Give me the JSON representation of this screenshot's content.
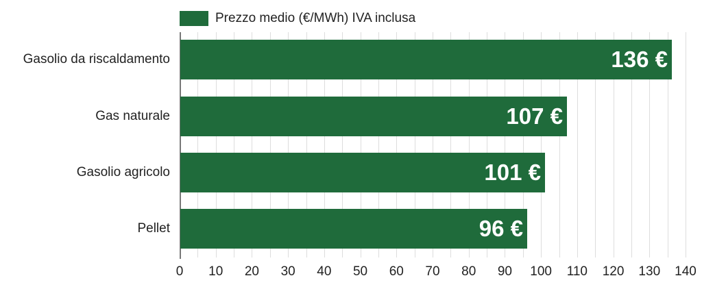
{
  "chart_data": {
    "type": "bar",
    "orientation": "horizontal",
    "title": "",
    "legend": {
      "position": "top",
      "entries": [
        "Prezzo medio (€/MWh) IVA inclusa"
      ]
    },
    "categories": [
      "Gasolio da riscaldamento",
      "Gas naturale",
      "Gasolio agricolo",
      "Pellet"
    ],
    "series": [
      {
        "name": "Prezzo medio (€/MWh) IVA inclusa",
        "values": [
          136,
          107,
          101,
          96
        ],
        "color": "#1f6b3b"
      }
    ],
    "data_labels": [
      "136 €",
      "107 €",
      "101 €",
      "96 €"
    ],
    "xlabel": "",
    "ylabel": "",
    "xlim": [
      0,
      140
    ],
    "xticks": [
      "0",
      "10",
      "20",
      "30",
      "40",
      "50",
      "60",
      "70",
      "80",
      "90",
      "100",
      "110",
      "120",
      "130",
      "140"
    ],
    "grid": true,
    "grid_step": 5
  },
  "legend": {
    "label": "Prezzo medio (€/MWh) IVA inclusa"
  },
  "colors": {
    "bar": "#1f6b3b",
    "grid": "#dddddd",
    "axis": "#777777"
  }
}
